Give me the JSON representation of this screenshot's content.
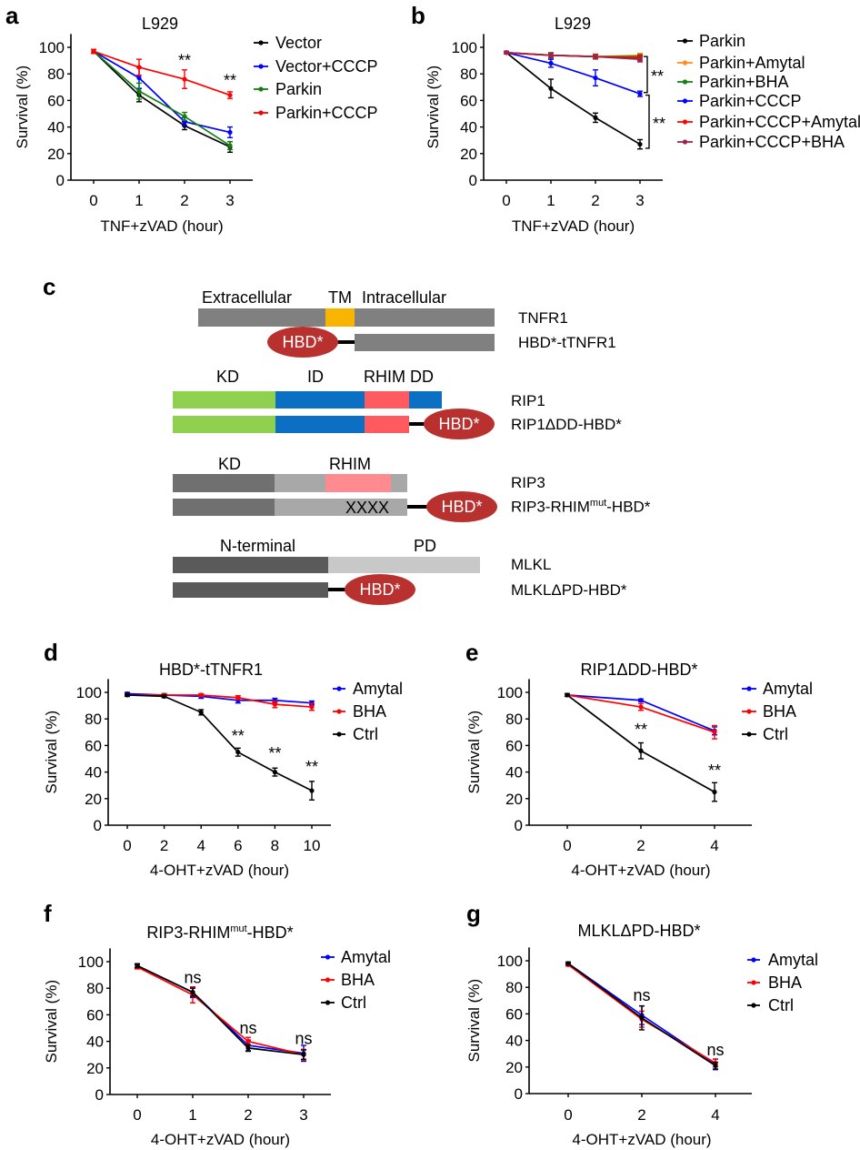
{
  "panel_c": {
    "letter": "c",
    "tnfr1": {
      "labels": [
        "Extracellular",
        "TM",
        "Intracellular"
      ],
      "name": "TNFR1",
      "fusion_name": "HBD*-tTNFR1"
    },
    "rip1": {
      "labels": [
        "KD",
        "ID",
        "RHIM DD"
      ],
      "name": "RIP1",
      "fusion_name": "RIP1ΔDD-HBD*"
    },
    "rip3": {
      "labels": [
        "KD",
        "RHIM"
      ],
      "name": "RIP3",
      "fusion_name_pre": "RIP3-RHIM",
      "fusion_name_sup": "mut",
      "fusion_name_post": "-HBD*",
      "mutation": "XXXX"
    },
    "mlkl": {
      "labels": [
        "N-terminal",
        "PD"
      ],
      "name": "MLKL",
      "fusion_name": "MLKLΔPD-HBD*"
    },
    "hbd_label": "HBD*",
    "colors": {
      "tm": "#f7b500",
      "kd": "#8fd14f",
      "id": "#0b6fc4",
      "rhim": "#ff5a5f",
      "rhim3": "#ff8a8f",
      "hbd": "#b8312f",
      "gray": "#808080",
      "lightgray": "#a8a8a8",
      "darkgray": "#606060",
      "palegray": "#c8c8c8"
    }
  },
  "chart_data": [
    {
      "id": "a",
      "letter": "a",
      "type": "line",
      "title": "L929",
      "xlabel": "TNF+zVAD (hour)",
      "ylabel": "Survival (%)",
      "x": [
        0,
        1,
        2,
        3
      ],
      "xticks": [
        "0",
        "1",
        "2",
        "3"
      ],
      "yticks": [
        "0",
        "20",
        "40",
        "60",
        "80",
        "100"
      ],
      "ylim": [
        0,
        110
      ],
      "legend": "right",
      "series": [
        {
          "name": "Vector",
          "color": "#000000",
          "values": [
            97,
            64,
            41,
            25
          ],
          "err": [
            1.5,
            5,
            3,
            4
          ]
        },
        {
          "name": "Vector+CCCP",
          "color": "#0000ff",
          "values": [
            97,
            77,
            44,
            36
          ],
          "err": [
            1.5,
            8,
            3,
            4
          ]
        },
        {
          "name": "Parkin",
          "color": "#108010",
          "values": [
            97,
            67,
            48,
            26
          ],
          "err": [
            1.5,
            6,
            3,
            3
          ]
        },
        {
          "name": "Parkin+CCCP",
          "color": "#ff0000",
          "values": [
            97,
            85,
            76,
            64
          ],
          "err": [
            1.5,
            6,
            7,
            2.5
          ]
        }
      ],
      "annotations": [
        {
          "x": 2,
          "y": 90,
          "text": "**"
        },
        {
          "x": 3,
          "y": 75,
          "text": "**"
        }
      ]
    },
    {
      "id": "b",
      "letter": "b",
      "type": "line",
      "title": "L929",
      "xlabel": "TNF+zVAD (hour)",
      "ylabel": "Survival (%)",
      "x": [
        0,
        1,
        2,
        3
      ],
      "xticks": [
        "0",
        "1",
        "2",
        "3"
      ],
      "yticks": [
        "0",
        "20",
        "40",
        "60",
        "80",
        "100"
      ],
      "ylim": [
        0,
        110
      ],
      "legend": "right",
      "series": [
        {
          "name": "Parkin",
          "color": "#000000",
          "values": [
            96,
            69,
            47,
            27
          ],
          "err": [
            1,
            7,
            3.5,
            3.5
          ]
        },
        {
          "name": "Parkin+Amytal",
          "color": "#ff8c1a",
          "values": [
            96,
            94,
            93,
            94
          ],
          "err": [
            1,
            1.5,
            2,
            1.5
          ]
        },
        {
          "name": "Parkin+BHA",
          "color": "#108010",
          "values": [
            96,
            94,
            93,
            93
          ],
          "err": [
            1,
            2,
            1.5,
            1.5
          ]
        },
        {
          "name": "Parkin+CCCP",
          "color": "#0000ff",
          "values": [
            96,
            88,
            77,
            65
          ],
          "err": [
            1,
            3,
            6,
            2
          ]
        },
        {
          "name": "Parkin+CCCP+Amytal",
          "color": "#ff0000",
          "values": [
            96,
            94,
            93,
            92
          ],
          "err": [
            1,
            1.5,
            1.5,
            2
          ]
        },
        {
          "name": "Parkin+CCCP+BHA",
          "color": "#a0204a",
          "values": [
            96,
            94,
            93,
            91
          ],
          "err": [
            1,
            1.5,
            1.5,
            2
          ]
        }
      ],
      "brackets": [
        {
          "x": 3,
          "y1": 93,
          "y2": 66,
          "text": "**"
        },
        {
          "x": 3,
          "y1": 64,
          "y2": 24,
          "text": "**"
        }
      ]
    },
    {
      "id": "d",
      "letter": "d",
      "type": "line",
      "title": "HBD*-tTNFR1",
      "xlabel": "4-OHT+zVAD (hour)",
      "ylabel": "Survival (%)",
      "x": [
        0,
        2,
        4,
        6,
        8,
        10
      ],
      "xticks": [
        "0",
        "2",
        "4",
        "6",
        "8",
        "10"
      ],
      "yticks": [
        "0",
        "20",
        "40",
        "60",
        "80",
        "100"
      ],
      "ylim": [
        0,
        110
      ],
      "legend": "right",
      "series": [
        {
          "name": "Amytal",
          "color": "#0000ff",
          "values": [
            99,
            98,
            97,
            94,
            94,
            92
          ],
          "err": [
            1,
            1,
            1.5,
            2,
            1.5,
            1.5
          ]
        },
        {
          "name": "BHA",
          "color": "#ff0000",
          "values": [
            98,
            98,
            98,
            96,
            91,
            89
          ],
          "err": [
            1,
            1,
            1,
            1.5,
            2.5,
            2.5
          ]
        },
        {
          "name": "Ctrl",
          "color": "#000000",
          "values": [
            98,
            97,
            85,
            55,
            40,
            26
          ],
          "err": [
            1,
            1,
            2,
            3,
            3,
            7
          ]
        }
      ],
      "annotations": [
        {
          "x": 6,
          "y": 67,
          "text": "**"
        },
        {
          "x": 8,
          "y": 54,
          "text": "**"
        },
        {
          "x": 10,
          "y": 44,
          "text": "**"
        }
      ]
    },
    {
      "id": "e",
      "letter": "e",
      "type": "line",
      "title": "RIP1ΔDD-HBD*",
      "xlabel": "4-OHT+zVAD (hour)",
      "ylabel": "Survival (%)",
      "x": [
        0,
        2,
        4
      ],
      "xticks": [
        "0",
        "2",
        "4"
      ],
      "yticks": [
        "0",
        "20",
        "40",
        "60",
        "80",
        "100"
      ],
      "ylim": [
        0,
        110
      ],
      "legend": "right",
      "series": [
        {
          "name": "Amytal",
          "color": "#0000ff",
          "values": [
            98,
            94,
            71
          ],
          "err": [
            1,
            1,
            3
          ]
        },
        {
          "name": "BHA",
          "color": "#ff0000",
          "values": [
            98,
            89,
            70
          ],
          "err": [
            1,
            2.5,
            5
          ]
        },
        {
          "name": "Ctrl",
          "color": "#000000",
          "values": [
            98,
            56,
            25
          ],
          "err": [
            1,
            6,
            7
          ]
        }
      ],
      "annotations": [
        {
          "x": 2,
          "y": 72,
          "text": "**"
        },
        {
          "x": 4,
          "y": 41,
          "text": "**"
        }
      ]
    },
    {
      "id": "f",
      "letter": "f",
      "type": "line",
      "title_pre": "RIP3-RHIM",
      "title_sup": "mut",
      "title_post": "-HBD*",
      "xlabel": "4-OHT+zVAD (hour)",
      "ylabel": "Survival (%)",
      "x": [
        0,
        1,
        2,
        3
      ],
      "xticks": [
        "0",
        "1",
        "2",
        "3"
      ],
      "yticks": [
        "0",
        "20",
        "40",
        "60",
        "80",
        "100"
      ],
      "ylim": [
        0,
        110
      ],
      "legend": "right",
      "series": [
        {
          "name": "Amytal",
          "color": "#0000ff",
          "values": [
            97,
            77,
            37,
            31
          ],
          "err": [
            1.5,
            4,
            4,
            6
          ]
        },
        {
          "name": "BHA",
          "color": "#ff0000",
          "values": [
            96,
            75,
            40,
            30
          ],
          "err": [
            1.5,
            6,
            3,
            4
          ]
        },
        {
          "name": "Ctrl",
          "color": "#000000",
          "values": [
            97,
            77,
            35,
            30
          ],
          "err": [
            1.5,
            3,
            2.5,
            3.5
          ]
        }
      ],
      "annotations": [
        {
          "x": 1,
          "y": 88,
          "text": "ns"
        },
        {
          "x": 2,
          "y": 50,
          "text": "ns"
        },
        {
          "x": 3,
          "y": 42,
          "text": "ns"
        }
      ]
    },
    {
      "id": "g",
      "letter": "g",
      "type": "line",
      "title": "MLKLΔPD-HBD*",
      "xlabel": "4-OHT+zVAD (hour)",
      "ylabel": "Survival (%)",
      "x": [
        0,
        2,
        4
      ],
      "xticks": [
        "0",
        "2",
        "4"
      ],
      "yticks": [
        "0",
        "20",
        "40",
        "60",
        "80",
        "100"
      ],
      "ylim": [
        0,
        110
      ],
      "legend": "right",
      "series": [
        {
          "name": "Amytal",
          "color": "#0000ff",
          "values": [
            98,
            59,
            22
          ],
          "err": [
            1,
            7,
            4
          ]
        },
        {
          "name": "BHA",
          "color": "#ff0000",
          "values": [
            97,
            56,
            23
          ],
          "err": [
            1,
            6,
            3
          ]
        },
        {
          "name": "Ctrl",
          "color": "#000000",
          "values": [
            98,
            57,
            21
          ],
          "err": [
            1,
            9,
            2.5
          ]
        }
      ],
      "annotations": [
        {
          "x": 2,
          "y": 74,
          "text": "ns"
        },
        {
          "x": 4,
          "y": 33,
          "text": "ns"
        }
      ]
    }
  ]
}
